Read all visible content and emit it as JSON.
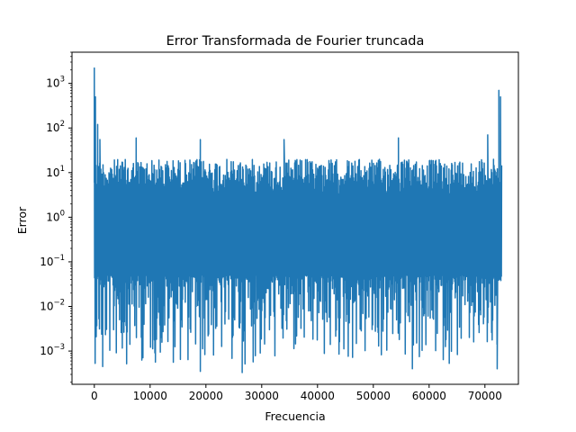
{
  "chart_data": {
    "type": "line",
    "title": "Error Transformada de Fourier truncada",
    "xlabel": "Frecuencia",
    "ylabel": "Error",
    "yscale": "log",
    "xlim": [
      -4000,
      76000
    ],
    "ylim": [
      0.00018,
      5000
    ],
    "xticks": [
      0,
      10000,
      20000,
      30000,
      40000,
      50000,
      60000,
      70000
    ],
    "yticks": [
      {
        "value": 0.001,
        "base": "10",
        "exp": "−3"
      },
      {
        "value": 0.01,
        "base": "10",
        "exp": "−2"
      },
      {
        "value": 0.1,
        "base": "10",
        "exp": "−1"
      },
      {
        "value": 1,
        "base": "10",
        "exp": "0"
      },
      {
        "value": 10,
        "base": "10",
        "exp": "1"
      },
      {
        "value": 100,
        "base": "10",
        "exp": "2"
      },
      {
        "value": 1000,
        "base": "10",
        "exp": "3"
      }
    ],
    "grid": false,
    "color": "#1f77b4",
    "series": [
      {
        "x_range": [
          0,
          73000
        ],
        "typical_band": [
          0.05,
          20
        ],
        "peaks": [
          {
            "x": 0,
            "y": 2200
          },
          {
            "x": 200,
            "y": 500
          },
          {
            "x": 600,
            "y": 120
          },
          {
            "x": 1000,
            "y": 55
          },
          {
            "x": 7500,
            "y": 60
          },
          {
            "x": 19000,
            "y": 55
          },
          {
            "x": 34000,
            "y": 55
          },
          {
            "x": 54500,
            "y": 60
          },
          {
            "x": 70500,
            "y": 70
          },
          {
            "x": 72500,
            "y": 700
          },
          {
            "x": 72800,
            "y": 500
          }
        ],
        "troughs": [
          {
            "x": 1500,
            "y": 0.00045
          },
          {
            "x": 19000,
            "y": 0.00035
          },
          {
            "x": 26500,
            "y": 0.00033
          },
          {
            "x": 57000,
            "y": 0.0004
          },
          {
            "x": 72200,
            "y": 0.0004
          }
        ]
      }
    ]
  }
}
